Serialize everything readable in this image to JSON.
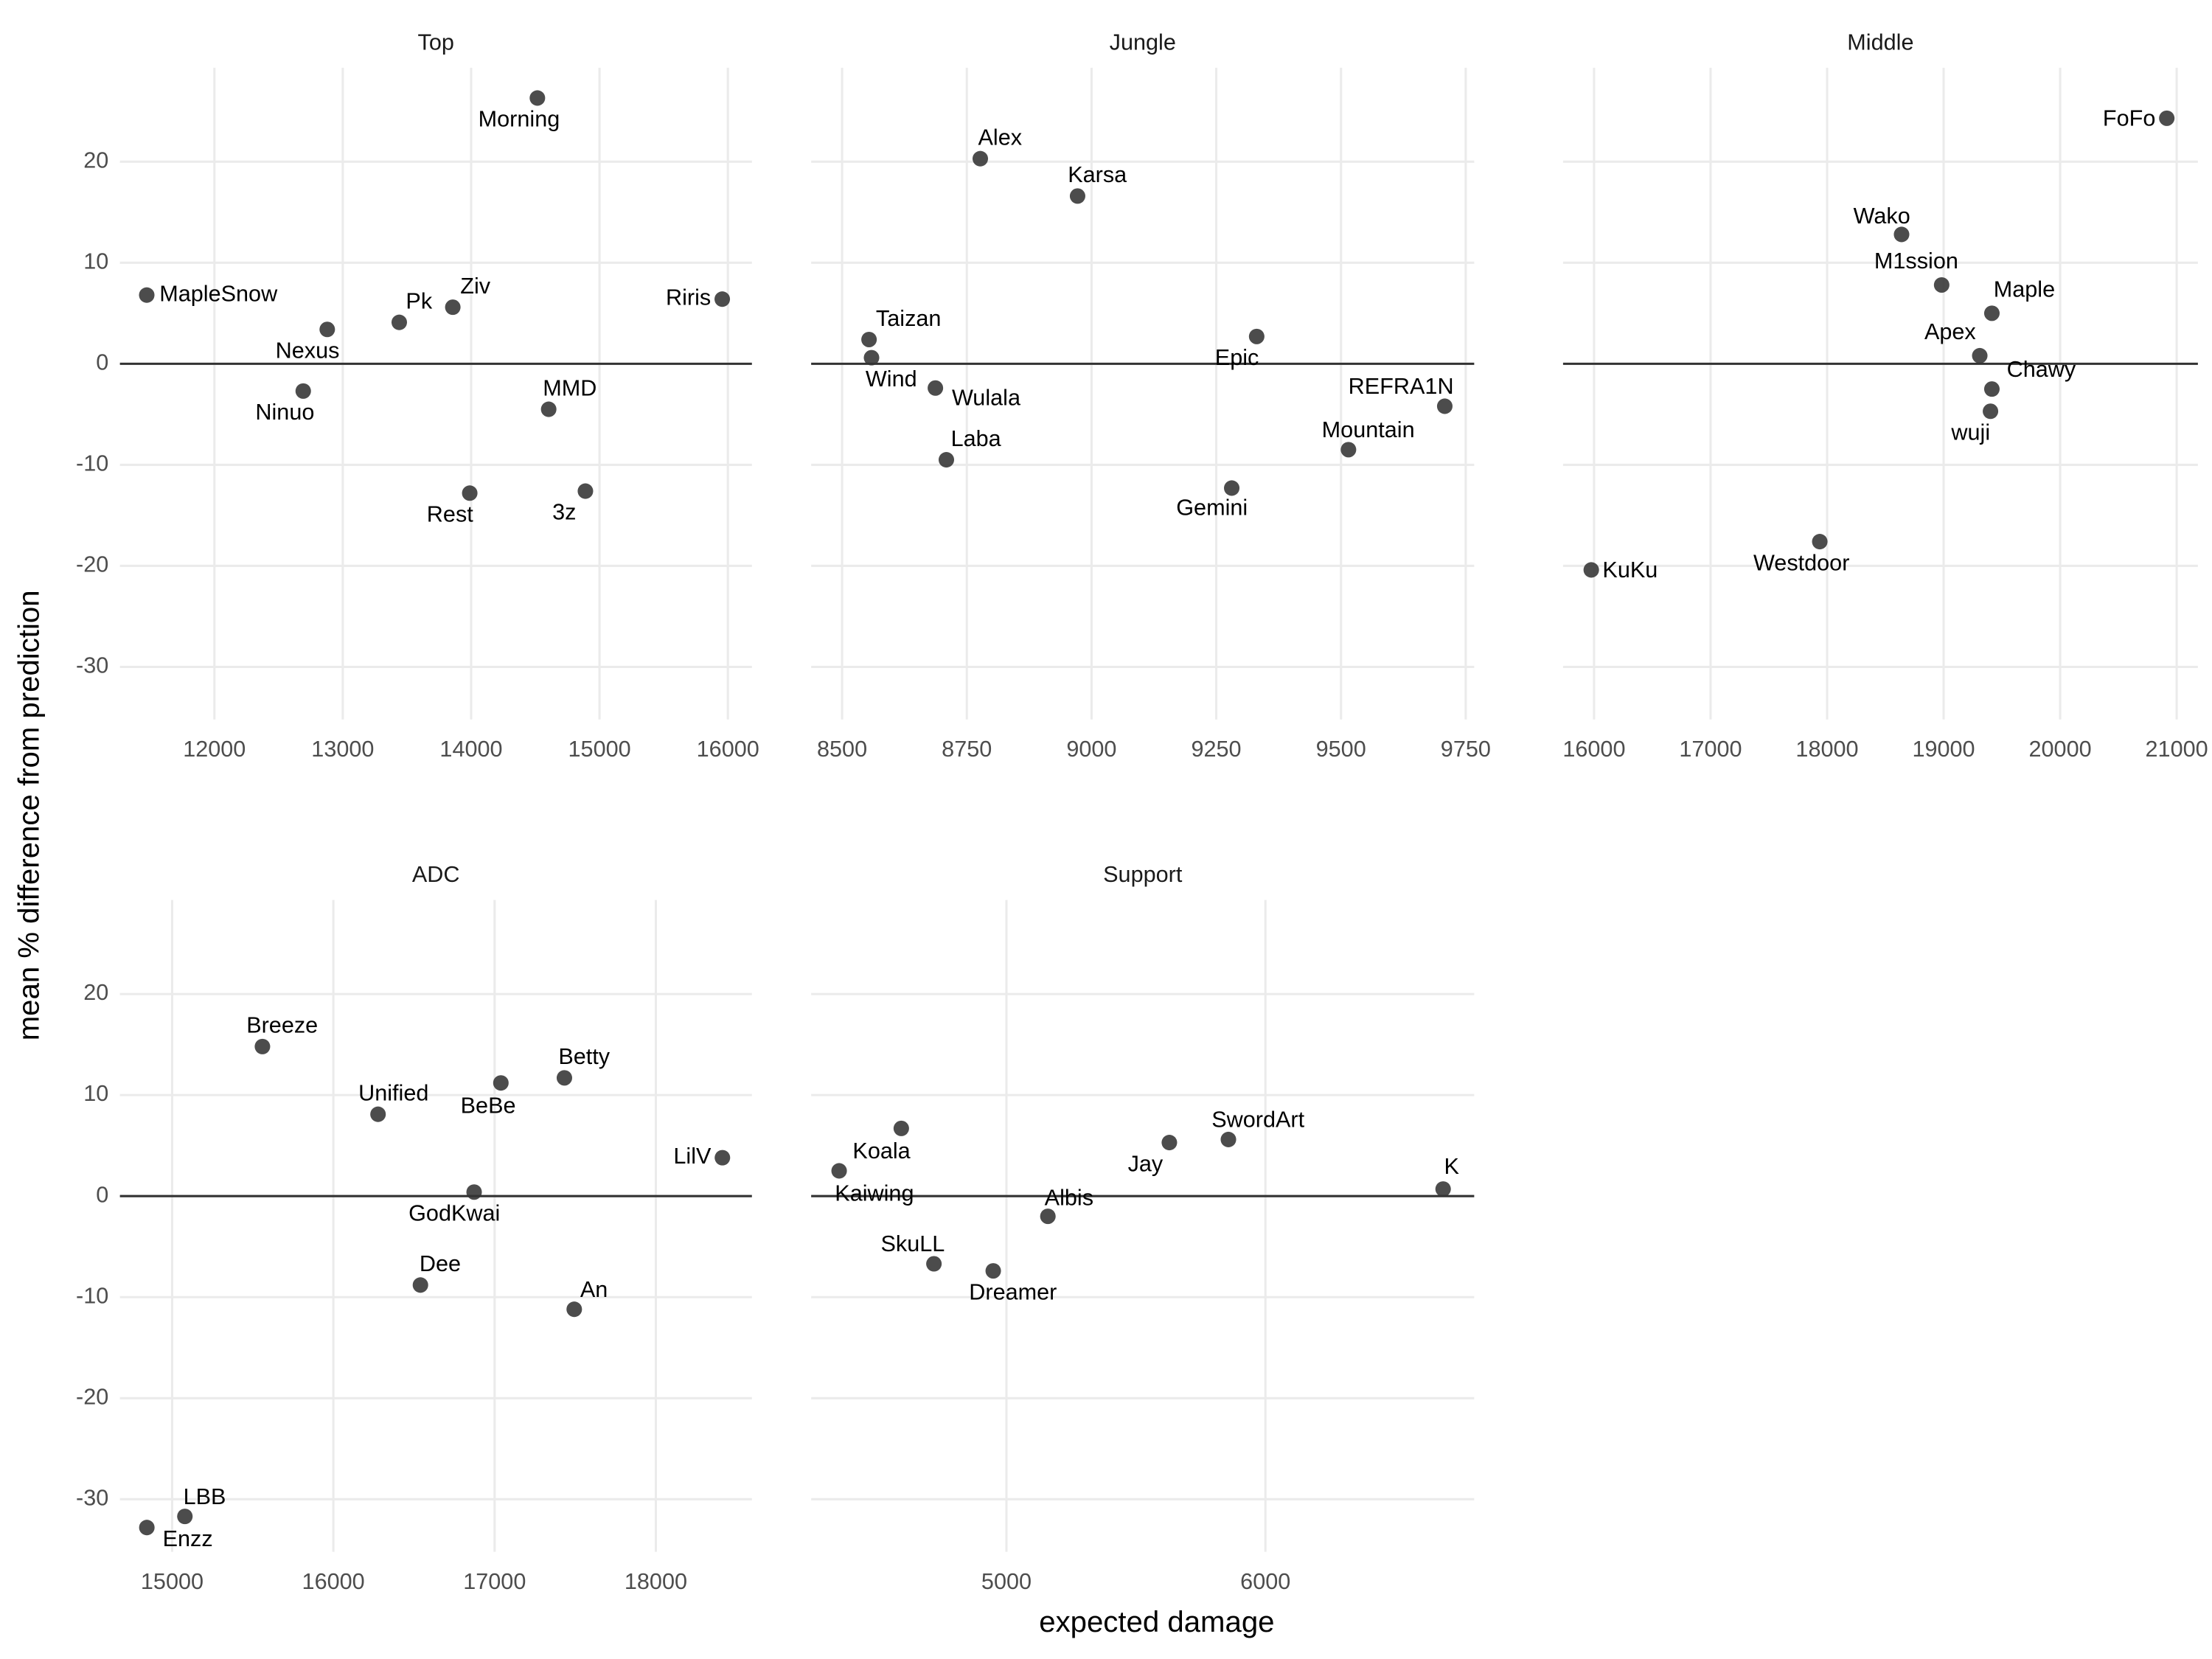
{
  "axis_titles": {
    "x": "expected damage",
    "y": "mean % difference from prediction"
  },
  "chart_data": [
    {
      "type": "scatter",
      "title": "Top",
      "labels": [
        "MapleSnow",
        "Nexus",
        "Pk",
        "Ziv",
        "Morning",
        "Riris",
        "Ninuo",
        "MMD",
        "Rest",
        "3z"
      ],
      "x": [
        11473,
        12879,
        13440,
        13857,
        14516,
        15956,
        12692,
        14604,
        13989,
        14890
      ],
      "values": [
        6.8,
        3.4,
        4.1,
        5.6,
        26.3,
        6.4,
        -2.7,
        -4.5,
        -12.8,
        -12.6
      ],
      "xlim": [
        11264,
        16187
      ],
      "xticks": [
        12000,
        13000,
        14000,
        15000,
        16000
      ],
      "ylim": [
        -35.2,
        29.3
      ],
      "yticks": [
        -30,
        -20,
        -10,
        0,
        10,
        20
      ],
      "hline": 0,
      "grid": true,
      "color": "#333333"
    },
    {
      "type": "scatter",
      "title": "Jungle",
      "labels": [
        "Alex",
        "Karsa",
        "Taizan",
        "Wind",
        "Epic",
        "Wulala",
        "Laba",
        "Gemini",
        "Mountain",
        "REFRA1N"
      ],
      "x": [
        8777,
        8972,
        8554,
        8559,
        9331,
        8687,
        8709,
        9281,
        9515,
        9708
      ],
      "values": [
        20.3,
        16.6,
        2.4,
        0.6,
        2.7,
        -2.4,
        -9.5,
        -12.3,
        -8.5,
        -4.2
      ],
      "xlim": [
        8438,
        9767
      ],
      "xticks": [
        8500,
        8750,
        9000,
        9250,
        9500,
        9750
      ],
      "ylim": [
        -35.2,
        29.3
      ],
      "yticks": [
        -30,
        -20,
        -10,
        0,
        10,
        20
      ],
      "hline": 0,
      "grid": true,
      "color": "#333333"
    },
    {
      "type": "scatter",
      "title": "Middle",
      "labels": [
        "FoFo",
        "Wako",
        "M1ssion",
        "Maple",
        "Apex",
        "Chawy",
        "wuji",
        "Westdoor",
        "KuKu"
      ],
      "x": [
        20915,
        18639,
        18983,
        19414,
        19310,
        19414,
        19402,
        17937,
        15976
      ],
      "values": [
        24.3,
        12.8,
        7.8,
        5.0,
        0.8,
        -2.5,
        -4.7,
        -17.6,
        -20.4
      ],
      "xlim": [
        15734,
        21182
      ],
      "xticks": [
        16000,
        17000,
        18000,
        19000,
        20000,
        21000
      ],
      "ylim": [
        -35.2,
        29.3
      ],
      "yticks": [
        -30,
        -20,
        -10,
        0,
        10,
        20
      ],
      "hline": 0,
      "grid": true,
      "color": "#333333"
    },
    {
      "type": "scatter",
      "title": "ADC",
      "labels": [
        "Breeze",
        "Unified",
        "BeBe",
        "Betty",
        "LilV",
        "GodKwai",
        "Dee",
        "An",
        "LBB",
        "Enzz"
      ],
      "x": [
        15560,
        16277,
        17039,
        17433,
        18413,
        16873,
        16540,
        17494,
        15079,
        14843
      ],
      "values": [
        14.8,
        8.1,
        11.2,
        11.7,
        3.8,
        0.4,
        -8.8,
        -11.2,
        -31.7,
        -32.8
      ],
      "xlim": [
        14676,
        18596
      ],
      "xticks": [
        15000,
        16000,
        17000,
        18000
      ],
      "ylim": [
        -35.2,
        29.3
      ],
      "yticks": [
        -30,
        -20,
        -10,
        0,
        10,
        20
      ],
      "hline": 0,
      "grid": true,
      "color": "#333333"
    },
    {
      "type": "scatter",
      "title": "Support",
      "labels": [
        "Koala",
        "Kaiwing",
        "SkuLL",
        "Dreamer",
        "Albis",
        "Jay",
        "SwordArt",
        "K"
      ],
      "x": [
        4594,
        4354,
        4720,
        4949,
        5160,
        5629,
        5857,
        6686
      ],
      "values": [
        6.7,
        2.5,
        -6.7,
        -7.4,
        -2.0,
        5.3,
        5.6,
        0.7
      ],
      "xlim": [
        4246,
        6806
      ],
      "xticks": [
        5000,
        6000
      ],
      "ylim": [
        -35.2,
        29.3
      ],
      "yticks": [
        -30,
        -20,
        -10,
        0,
        10,
        20
      ],
      "hline": 0,
      "grid": true,
      "color": "#333333"
    }
  ]
}
